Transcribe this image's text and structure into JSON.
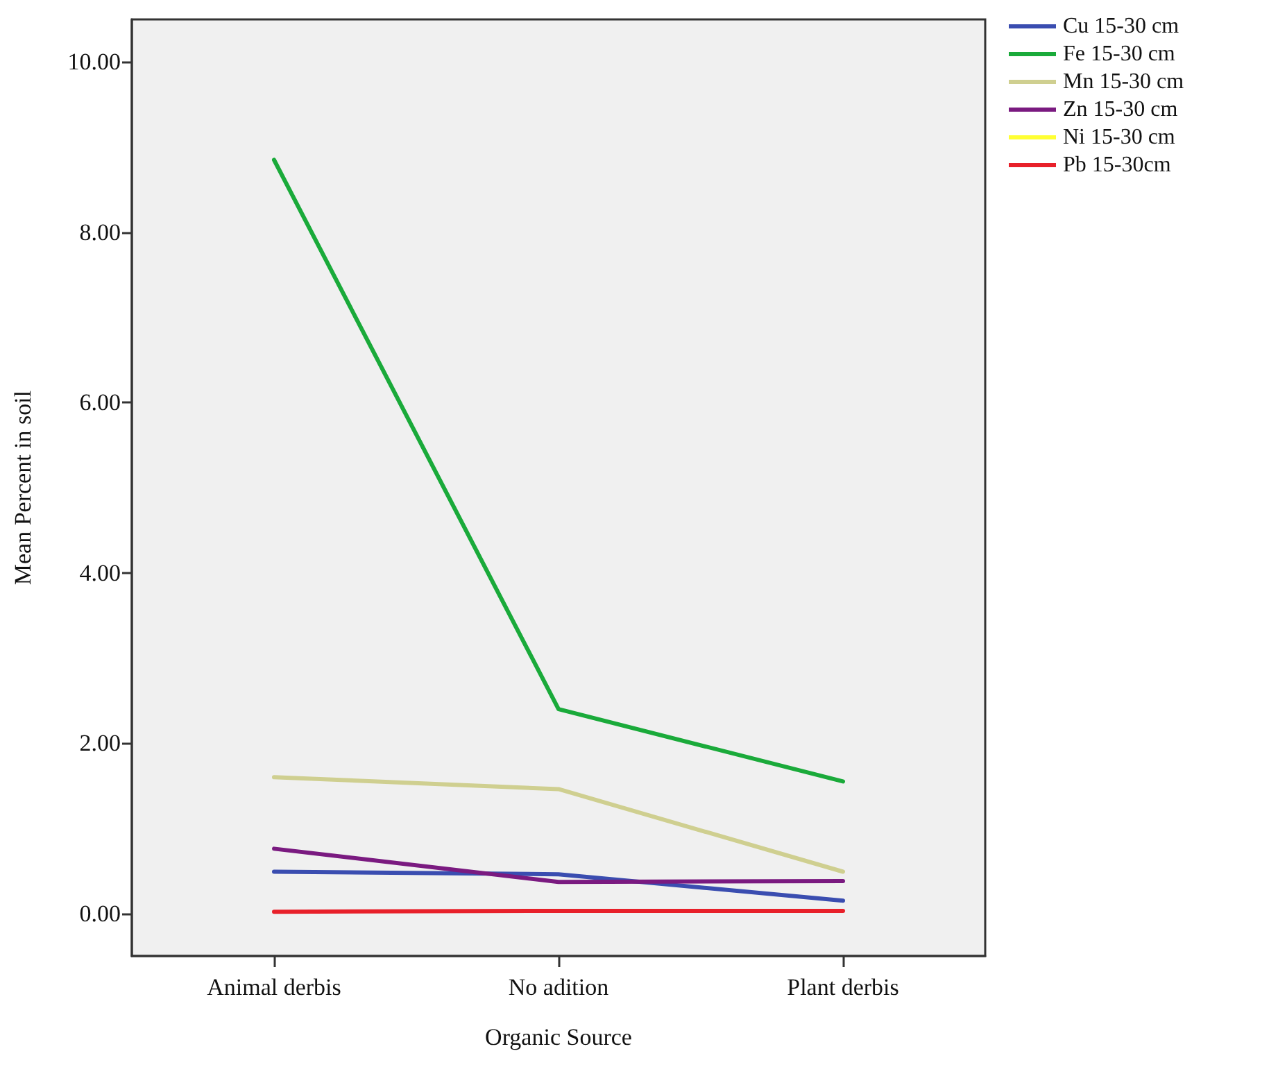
{
  "chart_data": {
    "type": "line",
    "xlabel": "Organic Source",
    "ylabel": "Mean Percent in soil",
    "categories": [
      "Animal derbis",
      "No adition",
      "Plant derbis"
    ],
    "series": [
      {
        "name": "Cu 15-30 cm",
        "color": "#3a4db0",
        "values": [
          0.49,
          0.46,
          0.15
        ]
      },
      {
        "name": "Fe 15-30 cm",
        "color": "#1aaa3a",
        "values": [
          8.85,
          2.4,
          1.55
        ]
      },
      {
        "name": "Mn 15-30 cm",
        "color": "#cfcf90",
        "values": [
          1.6,
          1.46,
          0.49
        ]
      },
      {
        "name": "Zn 15-30 cm",
        "color": "#7a1a80",
        "values": [
          0.76,
          0.37,
          0.38
        ]
      },
      {
        "name": "Ni 15-30 cm",
        "color": "#ffff33",
        "values": [
          null,
          null,
          null
        ]
      },
      {
        "name": "Pb 15-30cm",
        "color": "#e8202a",
        "values": [
          0.02,
          0.03,
          0.03
        ]
      }
    ],
    "ylim": [
      -0.5,
      10.5
    ],
    "yticks": [
      {
        "value": 0,
        "label": "0.00"
      },
      {
        "value": 2,
        "label": "2.00"
      },
      {
        "value": 4,
        "label": "4.00"
      },
      {
        "value": 6,
        "label": "6.00"
      },
      {
        "value": 8,
        "label": "8.00"
      },
      {
        "value": 10,
        "label": "10.00"
      }
    ],
    "grid": false,
    "legend": "top right",
    "marker": "none",
    "line_style": "solid"
  }
}
